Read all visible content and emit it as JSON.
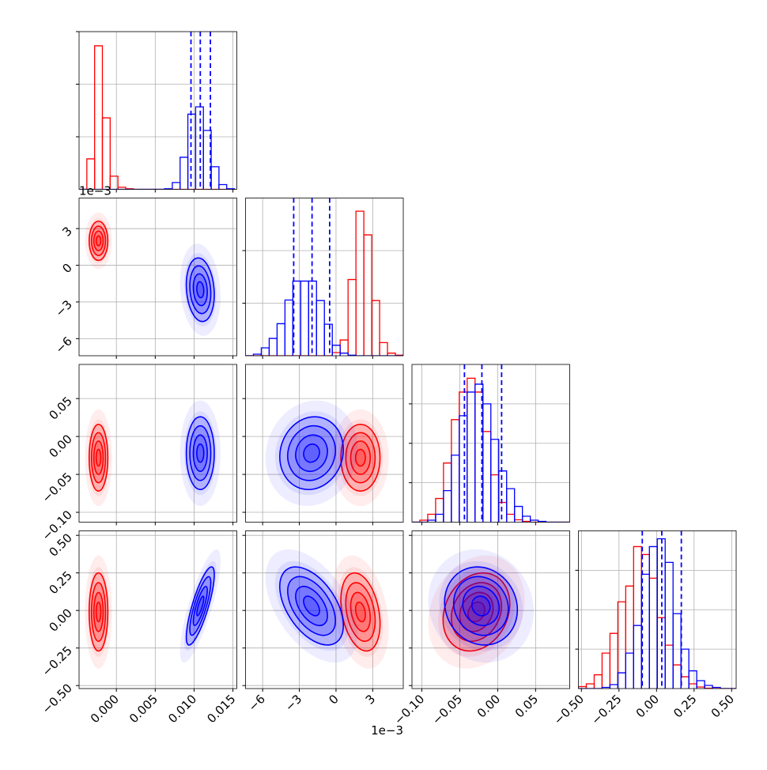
{
  "chart_data": {
    "type": "corner",
    "axes": [
      {
        "xlim": [
          -0.0048,
          0.0155
        ],
        "xticks": [
          {
            "value": 0,
            "label": "0.000"
          },
          0.005,
          {
            "value": 0.01,
            "label": "0.010"
          },
          0.015
        ]
      },
      {
        "xlim": [
          -7.4,
          5.5
        ],
        "xticks": [
          {
            "value": -6,
            "label": "−6"
          },
          {
            "value": -3,
            "label": "−3"
          },
          0,
          3
        ],
        "offset_label": "1e−3"
      },
      {
        "xlim": [
          -0.113,
          0.095
        ],
        "xticks": [
          {
            "value": -0.1,
            "label": "−0.10"
          },
          {
            "value": -0.05,
            "label": "−0.05"
          },
          {
            "value": 0,
            "label": "0.00"
          },
          0.05
        ]
      },
      {
        "xlim": [
          -0.52,
          0.53
        ],
        "xticks": [
          {
            "value": -0.5,
            "label": "−0.50"
          },
          {
            "value": -0.25,
            "label": "−0.25"
          },
          {
            "value": 0,
            "label": "0.00"
          },
          0.25,
          {
            "value": 0.5,
            "label": "0.50"
          }
        ]
      }
    ],
    "grid": true,
    "levels": [
      0.5,
      1,
      1.5,
      2
    ],
    "series": [
      {
        "color": "#ff0000",
        "mean": [
          -0.0023,
          2.0,
          -0.028,
          -0.01
        ],
        "sd": [
          0.0006,
          0.8,
          0.022,
          0.13
        ],
        "corr": [
          [
            1,
            0,
            0,
            0
          ],
          [
            0,
            1,
            0,
            -0.3
          ],
          [
            0,
            0,
            1,
            0.2
          ],
          [
            0,
            -0.3,
            0.2,
            1
          ]
        ]
      },
      {
        "color": "#0000ff",
        "mean": [
          0.0108,
          -2.0,
          -0.022,
          0.03
        ],
        "sd": [
          0.0009,
          1.3,
          0.024,
          0.13
        ],
        "corr": [
          [
            1,
            -0.15,
            0,
            0.8
          ],
          [
            -0.15,
            1,
            0.1,
            -0.5
          ],
          [
            0,
            0.1,
            1,
            -0.1
          ],
          [
            0.8,
            -0.5,
            -0.1,
            1
          ]
        ]
      }
    ],
    "histograms": [
      {
        "bins": [
          -0.0048,
          -0.0038,
          -0.0028,
          -0.0018,
          -0.0008,
          0.0002,
          0.0012,
          0.0022,
          0.0032,
          0.0042,
          0.0052,
          0.0062,
          0.0072,
          0.0082,
          0.0092,
          0.0102,
          0.0112,
          0.0122,
          0.0132,
          0.0142,
          0.0152
        ],
        "counts": [
          [
            0,
            0.58,
            2.73,
            1.36,
            0.25,
            0.04,
            0.01,
            0,
            0,
            0,
            0,
            0,
            0,
            0,
            0,
            0,
            0,
            0,
            0,
            0
          ],
          [
            0,
            0,
            0,
            0,
            0,
            0,
            0,
            0,
            0,
            0,
            0,
            0.01,
            0.13,
            0.61,
            1.43,
            1.57,
            1.12,
            0.43,
            0.09,
            0.01
          ]
        ],
        "quantiles": [
          0.0096,
          0.0108,
          0.0121
        ],
        "ylim": [
          0,
          3
        ],
        "yticks": [
          1,
          2,
          3
        ]
      },
      {
        "bins": [
          -7.4,
          -6.755,
          -6.11,
          -5.465,
          -4.82,
          -4.175,
          -3.53,
          -2.885,
          -2.24,
          -1.595,
          -0.95,
          -0.305,
          0.34,
          0.985,
          1.63,
          2.275,
          2.92,
          3.565,
          4.21,
          4.855,
          5.5
        ],
        "counts": [
          [
            0,
            0,
            0,
            0,
            0,
            0,
            0,
            0,
            0,
            0,
            0,
            0.06,
            0.3,
            1.45,
            2.75,
            2.3,
            1.05,
            0.25,
            0.05,
            0.01
          ],
          [
            0,
            0.03,
            0.15,
            0.33,
            0.61,
            1.06,
            1.42,
            1.42,
            1.42,
            1.05,
            0.6,
            0.2,
            0.05,
            0.01,
            0,
            0,
            0,
            0,
            0,
            0
          ]
        ],
        "quantiles": [
          -3.46,
          -1.96,
          -0.52
        ],
        "ylim": [
          0,
          3
        ],
        "yticks": [
          1,
          2
        ]
      },
      {
        "bins": [
          -0.113,
          -0.1026,
          -0.0922,
          -0.0818,
          -0.0714,
          -0.061,
          -0.0506,
          -0.0402,
          -0.0298,
          -0.0194,
          -0.009,
          0.0014,
          0.0118,
          0.0222,
          0.0326,
          0.043,
          0.0534,
          0.0638,
          0.0742,
          0.0846,
          0.095
        ],
        "counts": [
          [
            0,
            0.05,
            0.2,
            0.6,
            1.5,
            2.6,
            3.3,
            3.65,
            3.3,
            2.3,
            1.2,
            0.5,
            0.2,
            0.06,
            0.02,
            0,
            0,
            0,
            0,
            0
          ],
          [
            0,
            0,
            0.05,
            0.2,
            0.8,
            1.7,
            2.7,
            3.3,
            3.5,
            3.0,
            2.1,
            1.3,
            0.85,
            0.4,
            0.15,
            0.05,
            0.02,
            0,
            0,
            0
          ]
        ],
        "quantiles": [
          -0.0438,
          -0.0208,
          0.0052
        ],
        "ylim": [
          0,
          4
        ],
        "yticks": [
          1,
          2,
          3
        ]
      },
      {
        "bins": [
          -0.52,
          -0.4675,
          -0.415,
          -0.3625,
          -0.31,
          -0.2575,
          -0.205,
          -0.1525,
          -0.1,
          -0.0475,
          0.005,
          0.0575,
          0.11,
          0.1625,
          0.215,
          0.2675,
          0.32,
          0.3725,
          0.425,
          0.4775,
          0.53
        ],
        "counts": [
          [
            0.05,
            0.12,
            0.35,
            0.9,
            1.4,
            2.2,
            2.6,
            3.6,
            3.4,
            2.8,
            1.8,
            1.1,
            0.6,
            0.3,
            0.12,
            0.04,
            0.01,
            0,
            0,
            0
          ],
          [
            0,
            0,
            0,
            0.03,
            0.1,
            0.4,
            0.9,
            1.6,
            2.9,
            3.6,
            3.8,
            3.2,
            1.9,
            1.0,
            0.45,
            0.2,
            0.08,
            0.03,
            0,
            0
          ]
        ],
        "quantiles": [
          -0.095,
          0.035,
          0.165
        ],
        "ylim": [
          0,
          4
        ],
        "yticks": [
          1,
          2,
          3
        ]
      }
    ]
  }
}
